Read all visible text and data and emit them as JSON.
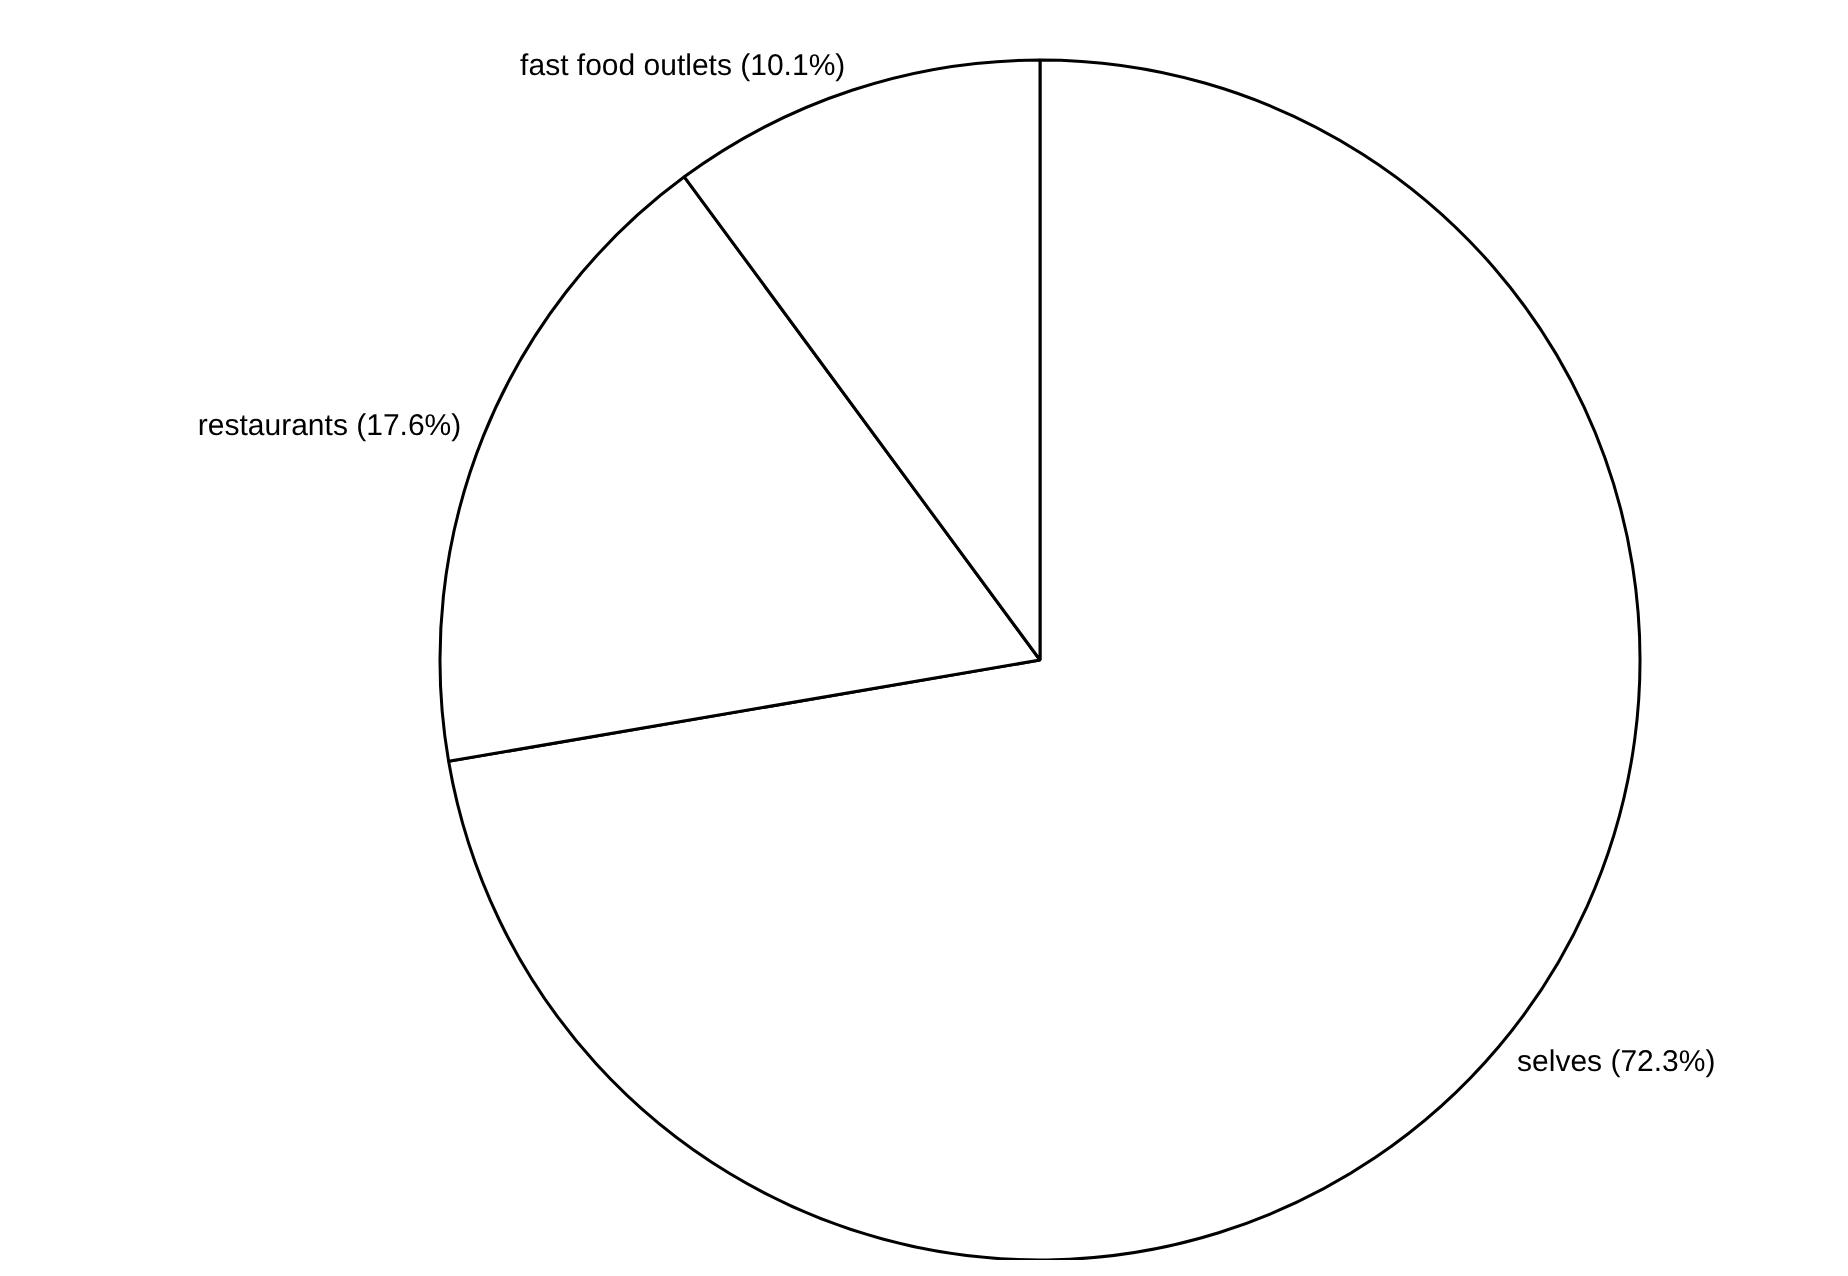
{
  "chart_data": {
    "type": "pie",
    "categories": [
      "selves",
      "restaurants",
      "fast food outlets"
    ],
    "values": [
      72.3,
      17.6,
      10.1
    ],
    "value_labels": [
      "(72.3%)",
      "(17.6%)",
      "(10.1%)"
    ],
    "colors": [
      "#ffffff",
      "#ffffff",
      "#ffffff"
    ],
    "legend": false
  }
}
